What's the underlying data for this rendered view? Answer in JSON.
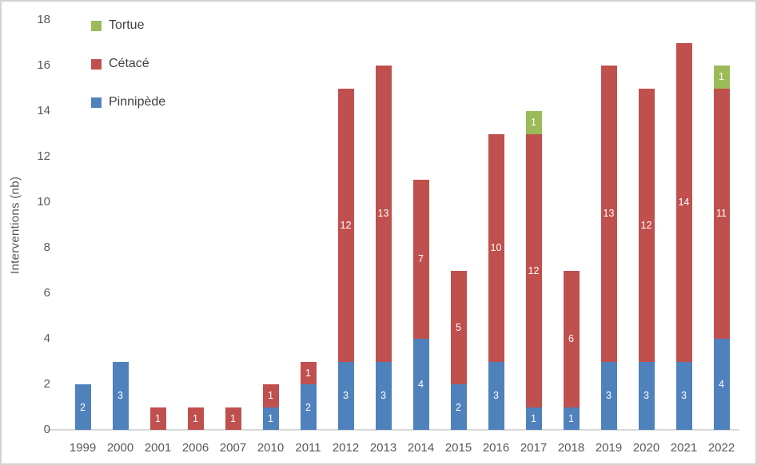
{
  "figure": {
    "background": "#ffffff",
    "border_color": "#d3d3d3"
  },
  "chart_data": {
    "type": "bar",
    "stacked": true,
    "title": "",
    "xlabel": "",
    "ylabel": "Interventions (nb)",
    "ylim": [
      0,
      18
    ],
    "ytick_step": 2,
    "grid": false,
    "legend_position": "top-left-inside",
    "legend_order": [
      "Tortue",
      "Cétacé",
      "Pinnipède"
    ],
    "categories": [
      "1999",
      "2000",
      "2001",
      "2006",
      "2007",
      "2010",
      "2011",
      "2012",
      "2013",
      "2014",
      "2015",
      "2016",
      "2017",
      "2018",
      "2019",
      "2020",
      "2021",
      "2022"
    ],
    "series": [
      {
        "name": "Pinnipède",
        "color": "#4F81BD",
        "values": [
          2,
          3,
          0,
          0,
          0,
          1,
          2,
          3,
          3,
          4,
          2,
          3,
          1,
          1,
          3,
          3,
          3,
          4
        ]
      },
      {
        "name": "Cétacé",
        "color": "#C0504D",
        "values": [
          0,
          0,
          1,
          1,
          1,
          1,
          1,
          12,
          13,
          7,
          5,
          10,
          12,
          6,
          13,
          12,
          14,
          11
        ]
      },
      {
        "name": "Tortue",
        "color": "#9BBB59",
        "values": [
          0,
          0,
          0,
          0,
          0,
          0,
          0,
          0,
          0,
          0,
          0,
          0,
          1,
          0,
          0,
          0,
          0,
          1
        ]
      }
    ],
    "totals": [
      2,
      3,
      1,
      1,
      1,
      2,
      3,
      15,
      16,
      11,
      7,
      13,
      14,
      7,
      16,
      15,
      17,
      16
    ],
    "data_label_color": "#ffffff",
    "axis_line_color": "#d9d9d9",
    "tick_label_color": "#595959",
    "legend_text_color": "#404040"
  }
}
